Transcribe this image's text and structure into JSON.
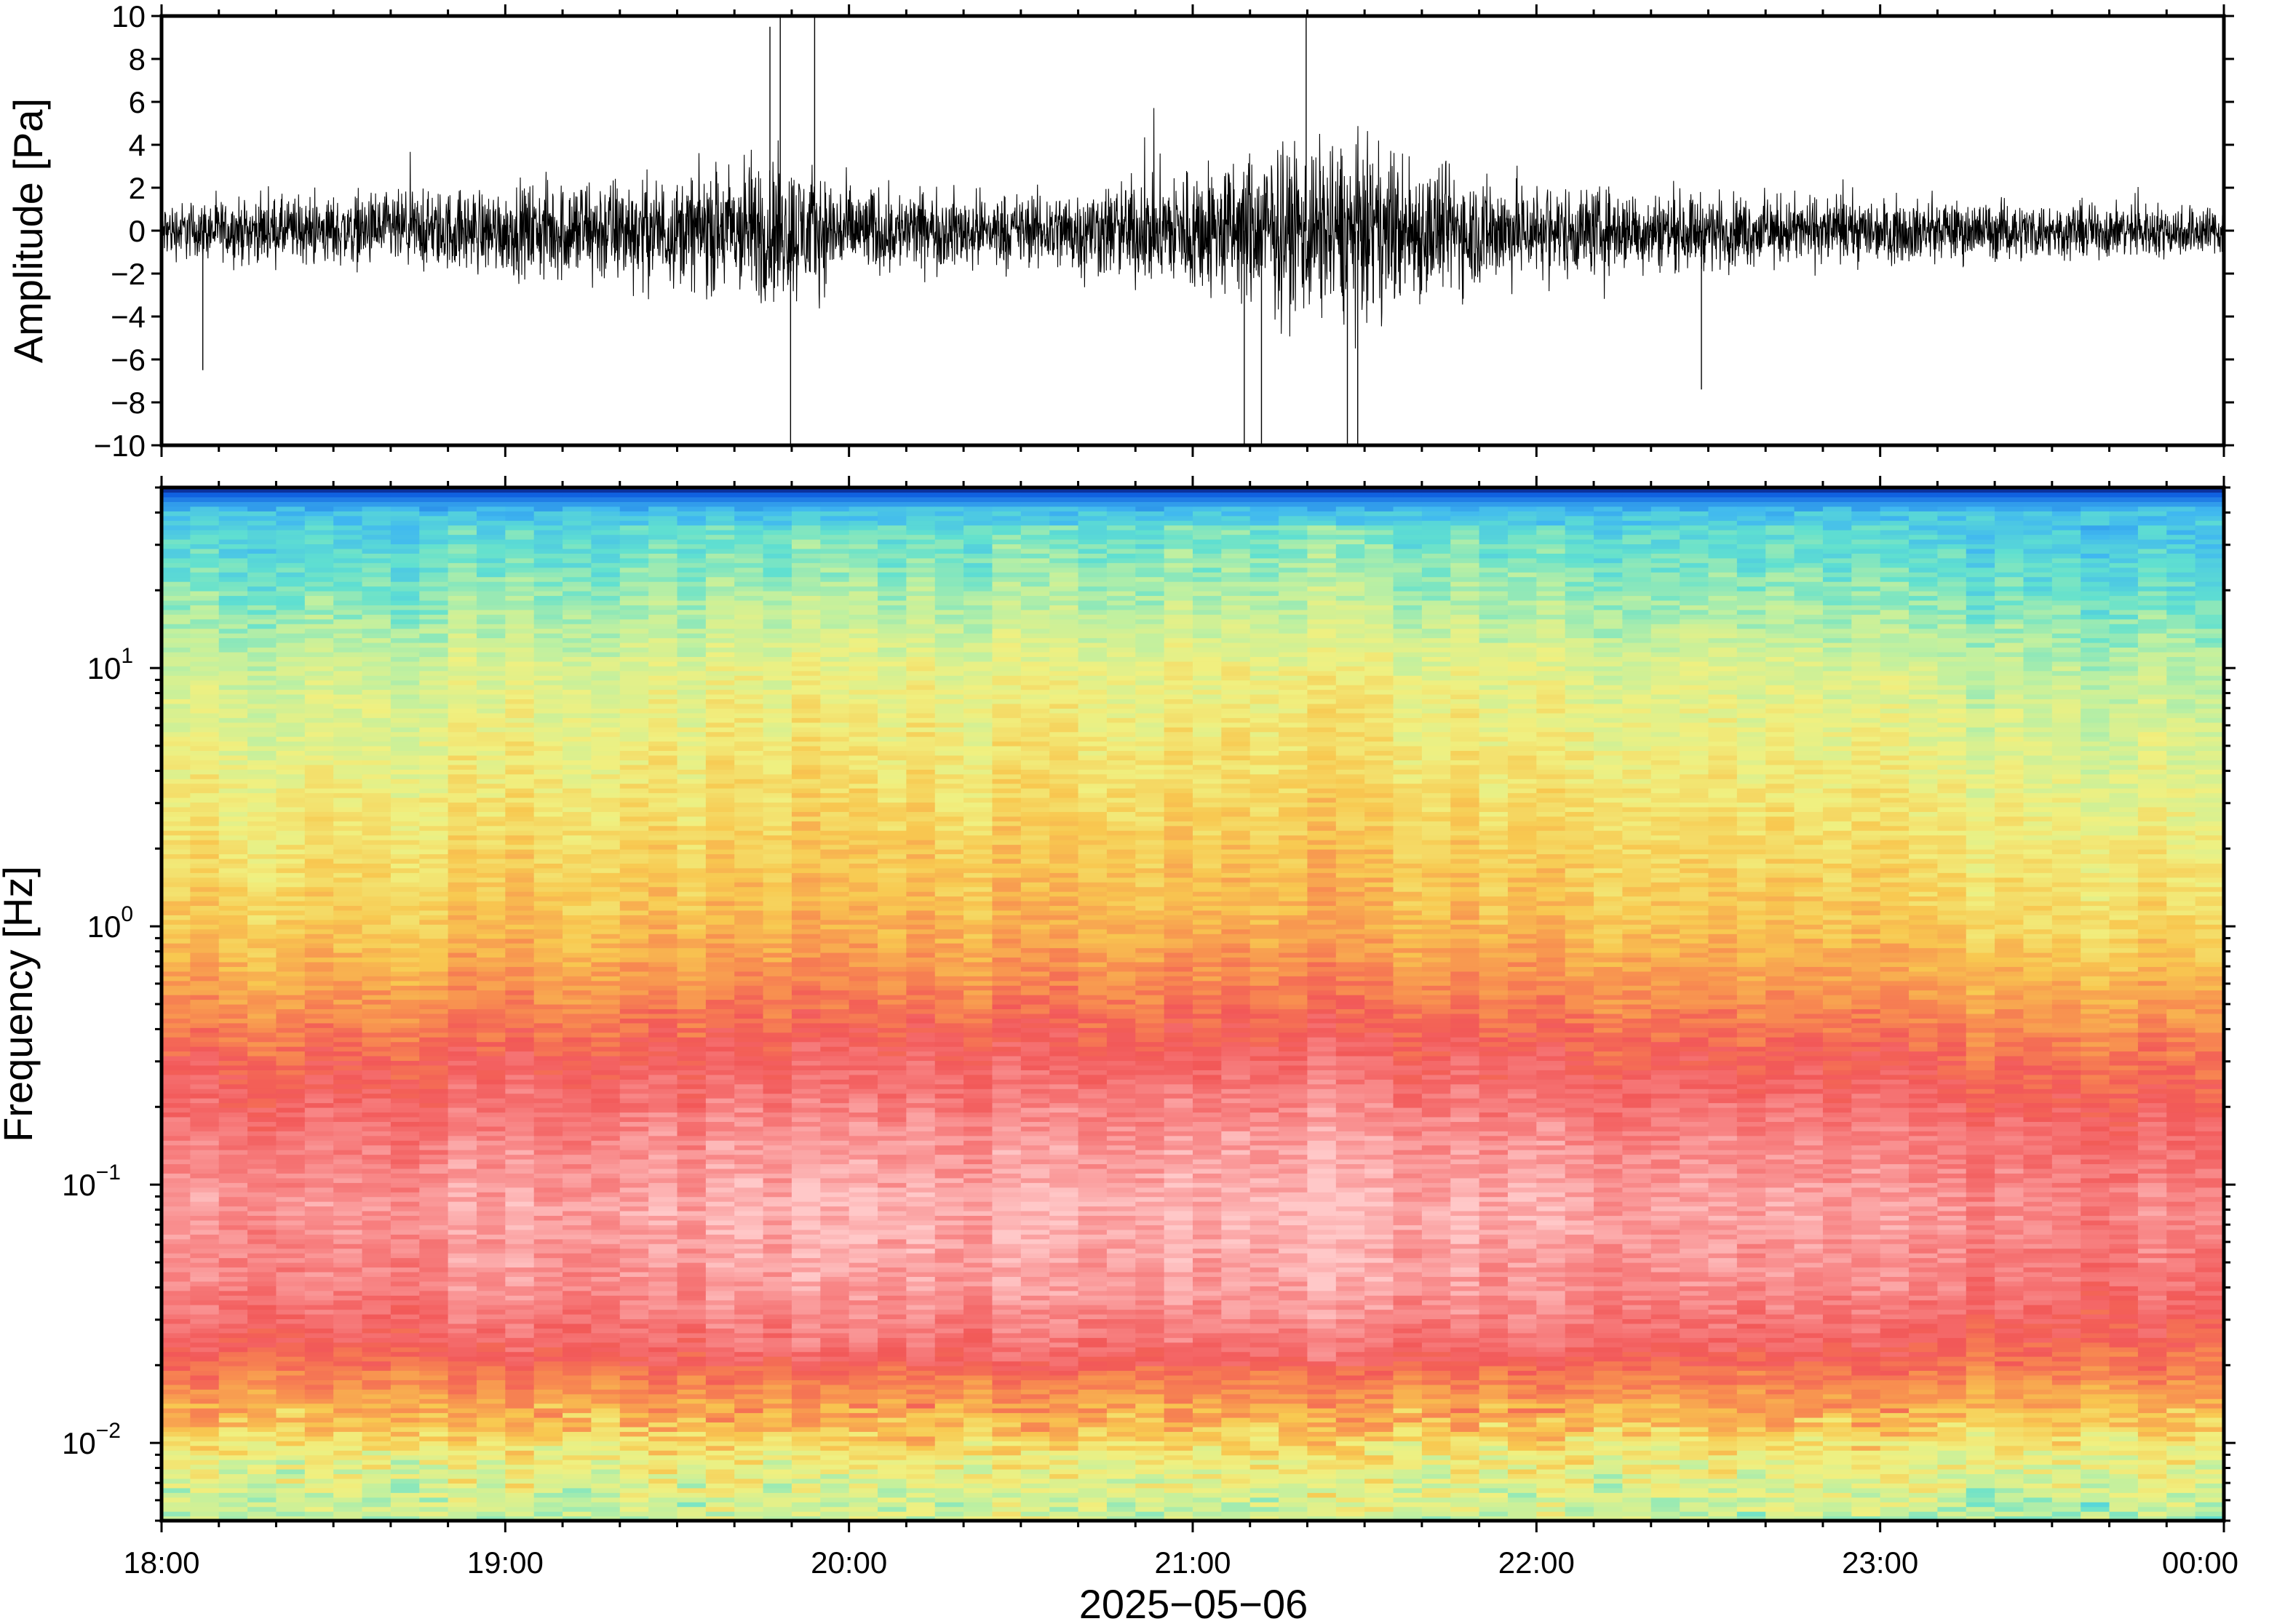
{
  "chart_data": [
    {
      "type": "line",
      "panel": "waveform",
      "ylabel": "Amplitude [Pa]",
      "ylim": [
        -10,
        10
      ],
      "yticks": [
        10,
        8,
        6,
        4,
        2,
        0,
        -2,
        -4,
        -6,
        -8,
        -10
      ],
      "ytick_labels": [
        "10",
        "8",
        "6",
        "4",
        "2",
        "0",
        "−2",
        "−4",
        "−6",
        "−8",
        "−10"
      ],
      "xlim_hours": [
        18,
        24
      ],
      "line_color": "#000000",
      "envelope": {
        "hours": [
          18.0,
          18.5,
          19.0,
          19.25,
          19.5,
          19.75,
          19.85,
          20.0,
          20.25,
          20.5,
          20.75,
          21.0,
          21.25,
          21.4,
          21.6,
          21.75,
          22.0,
          22.25,
          22.5,
          23.0,
          23.5,
          24.0
        ],
        "amplitude_pa": [
          1.3,
          1.6,
          2.0,
          2.6,
          2.4,
          3.6,
          3.2,
          2.1,
          1.8,
          1.7,
          2.2,
          3.0,
          3.8,
          4.2,
          3.6,
          2.9,
          2.2,
          1.9,
          1.7,
          1.5,
          1.3,
          1.2
        ]
      },
      "spikes": [
        {
          "hour": 19.8,
          "value": 10
        },
        {
          "hour": 19.83,
          "value": -10
        },
        {
          "hour": 19.9,
          "value": 10
        },
        {
          "hour": 19.77,
          "value": 9.5
        },
        {
          "hour": 21.33,
          "value": 10
        },
        {
          "hour": 21.15,
          "value": -10
        },
        {
          "hour": 21.2,
          "value": -10
        },
        {
          "hour": 21.45,
          "value": -10
        },
        {
          "hour": 21.48,
          "value": -10
        },
        {
          "hour": 18.12,
          "value": -6.5
        },
        {
          "hour": 22.48,
          "value": -7.4
        }
      ]
    },
    {
      "type": "heatmap",
      "panel": "spectrogram",
      "ylabel": "Frequency [Hz]",
      "yscale": "log",
      "ylim": [
        0.005,
        50
      ],
      "yticks": [
        {
          "value": 10,
          "base": "10",
          "exp": "1"
        },
        {
          "value": 1,
          "base": "10",
          "exp": "0"
        },
        {
          "value": 0.1,
          "base": "10",
          "exp": "−1"
        },
        {
          "value": 0.01,
          "base": "10",
          "exp": "−2"
        }
      ],
      "xlabel": "2025−05−06",
      "xlim_hours": [
        18,
        24
      ],
      "xtick_hours": [
        18,
        19,
        20,
        21,
        22,
        23,
        24
      ],
      "xtick_labels": [
        "18:00",
        "19:00",
        "20:00",
        "21:00",
        "22:00",
        "23:00",
        "00:00"
      ],
      "colormap": [
        "#0a1a7a",
        "#1060e0",
        "#40b8f0",
        "#60e0d0",
        "#c0f0a0",
        "#f0f080",
        "#f8c850",
        "#f89050",
        "#f25858",
        "#f88888",
        "#ffc8c8"
      ],
      "level_profile": {
        "frequency_hz": [
          50,
          47,
          40,
          20,
          10,
          3,
          1,
          0.5,
          0.3,
          0.15,
          0.08,
          0.04,
          0.025,
          0.018,
          0.012,
          0.009,
          0.006,
          0.005
        ],
        "level": [
          0.0,
          1.0,
          2.3,
          3.2,
          4.2,
          5.0,
          5.8,
          6.8,
          7.7,
          8.6,
          9.1,
          8.7,
          8.0,
          7.2,
          6.0,
          5.0,
          4.2,
          4.0
        ]
      },
      "activity_by_hour": {
        "hours": [
          18.0,
          18.5,
          19.0,
          19.5,
          19.75,
          20.0,
          20.5,
          21.0,
          21.4,
          21.75,
          22.0,
          22.5,
          23.0,
          23.5,
          24.0
        ],
        "offset": [
          0.0,
          0.1,
          0.3,
          0.3,
          0.7,
          0.6,
          0.5,
          0.7,
          0.8,
          0.6,
          0.4,
          0.3,
          0.1,
          -0.1,
          -0.2
        ]
      }
    }
  ]
}
